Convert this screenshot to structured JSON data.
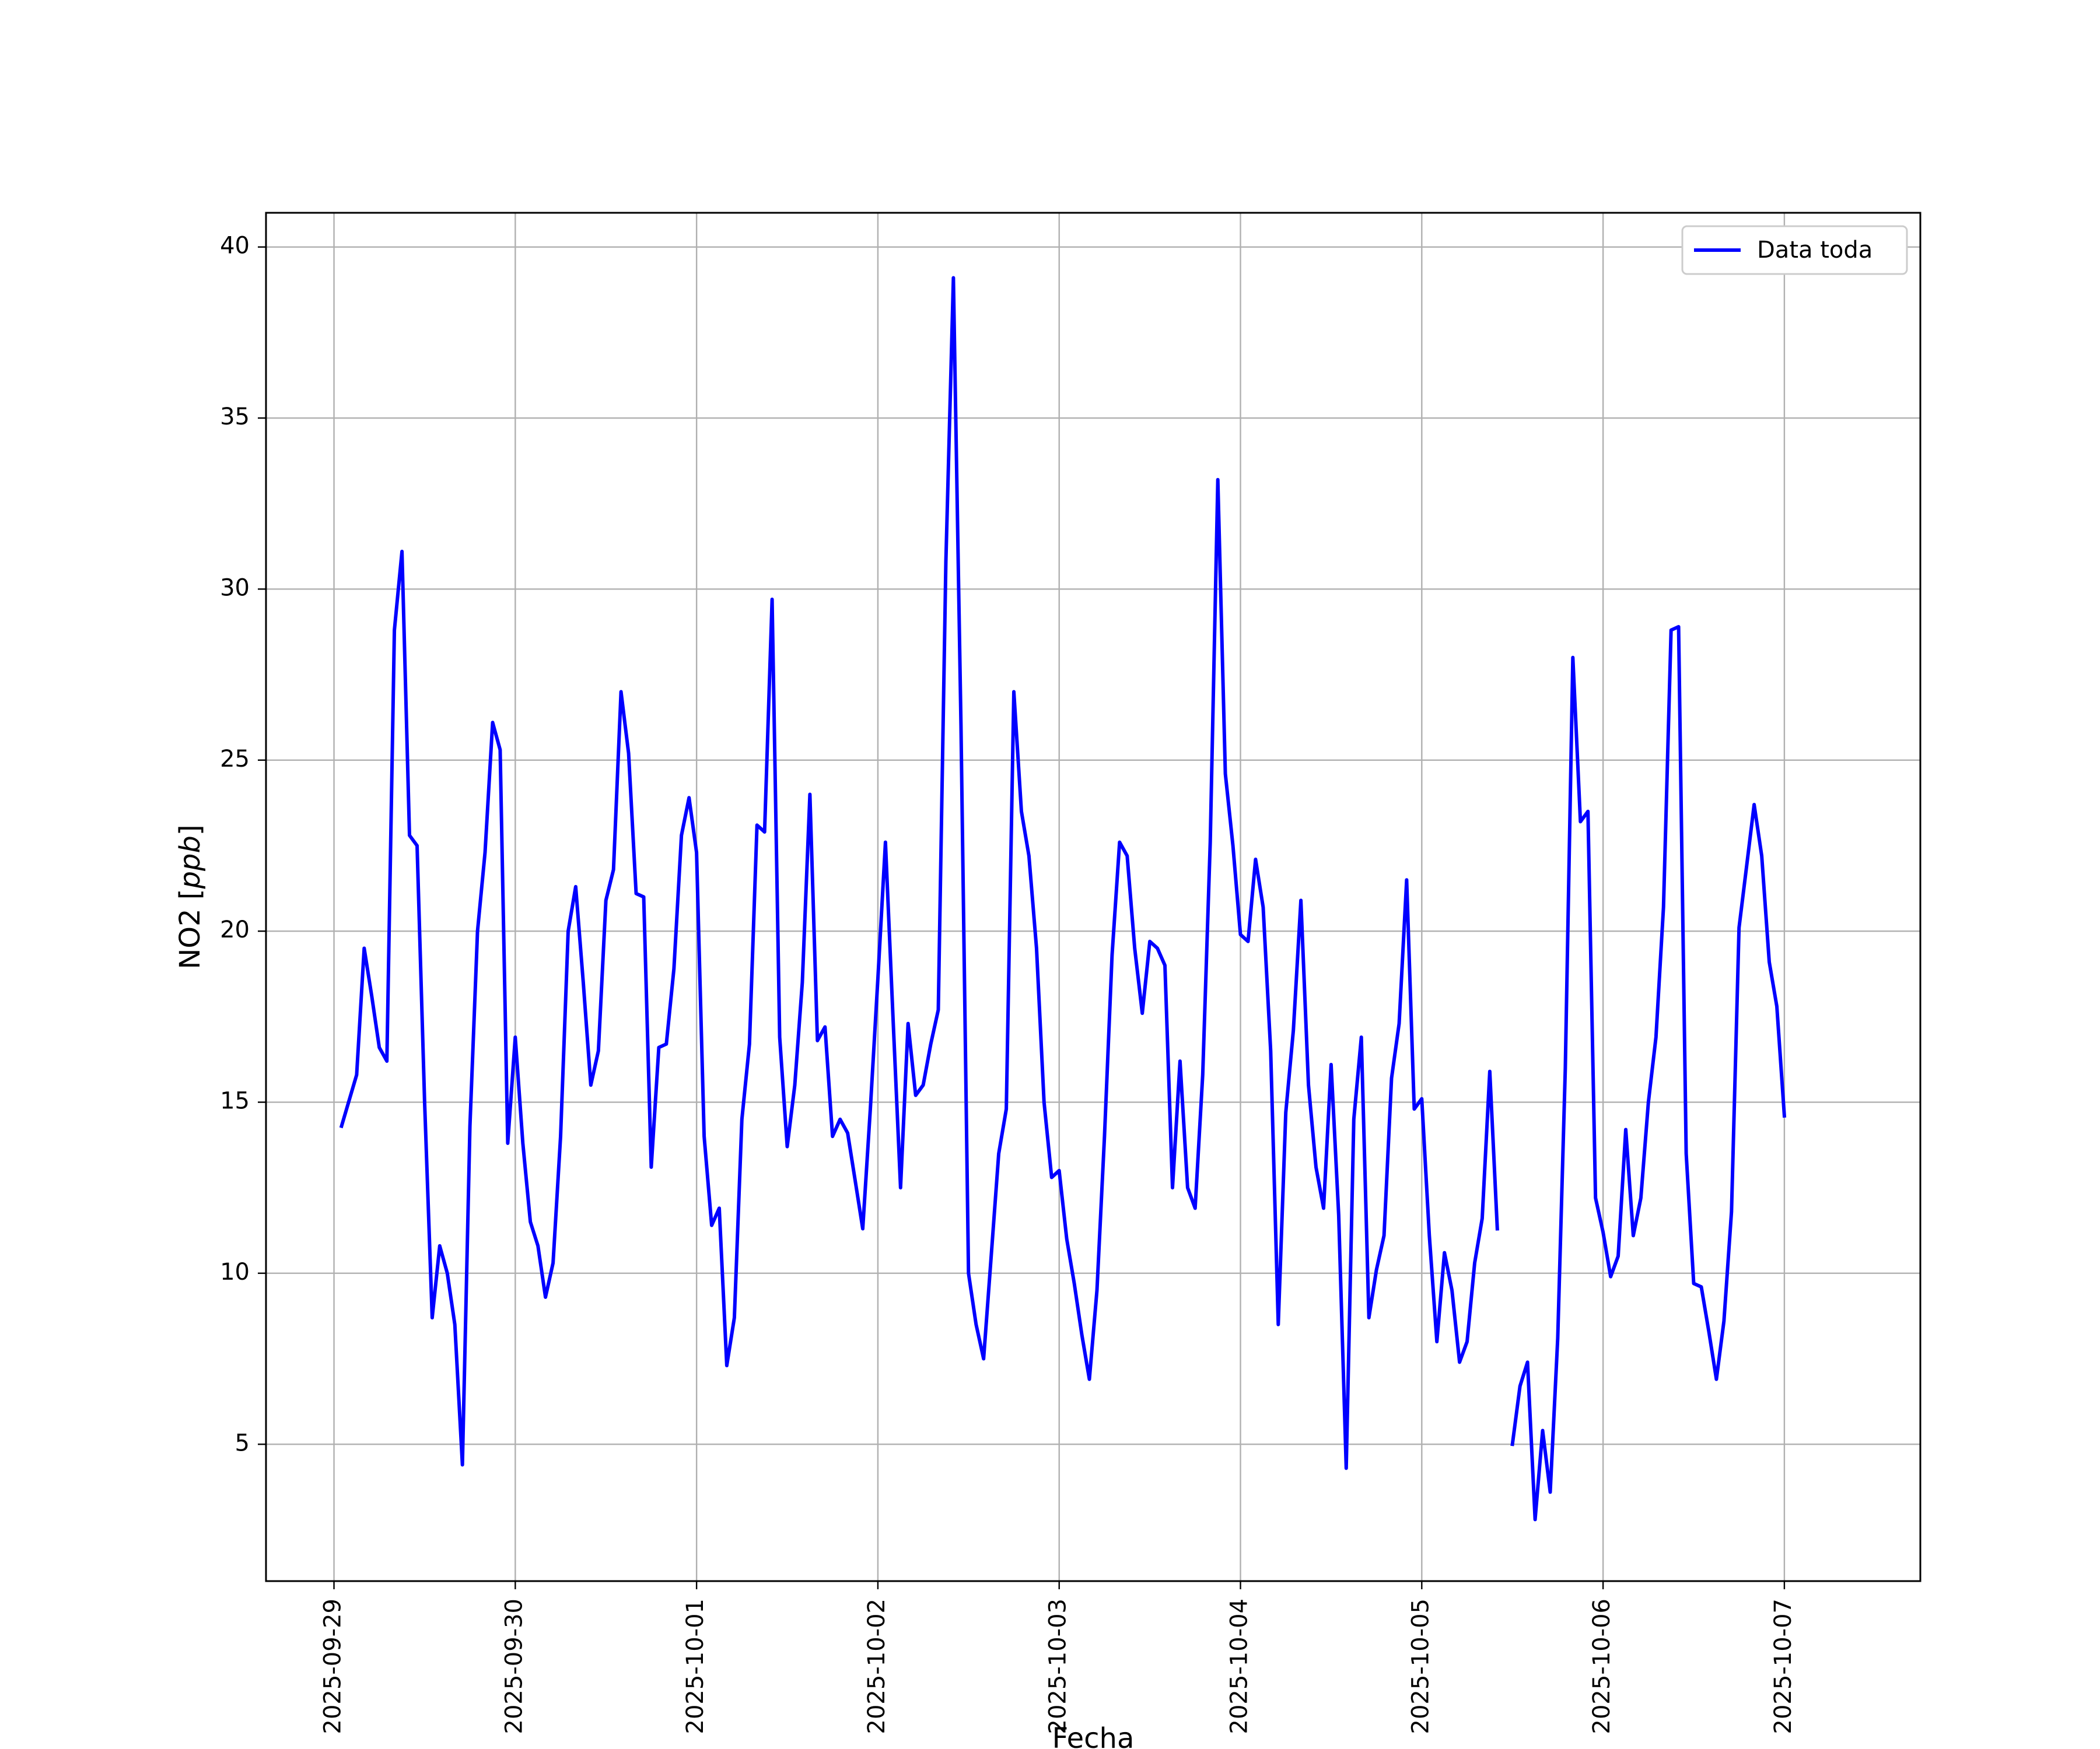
{
  "chart_data": {
    "type": "line",
    "title": "",
    "xlabel": "Fecha",
    "ylabel_main": "NO2 [",
    "ylabel_unit": "ppb",
    "ylabel_close": "]",
    "xlim": [
      "2025-09-28T15:00",
      "2025-10-07T18:00"
    ],
    "ylim": [
      1.0,
      41.0
    ],
    "grid": true,
    "legend": {
      "location": "top-right",
      "entries": [
        "Data toda"
      ]
    },
    "x_ticks": [
      "2025-09-29",
      "2025-09-30",
      "2025-10-01",
      "2025-10-02",
      "2025-10-03",
      "2025-10-04",
      "2025-10-05",
      "2025-10-06",
      "2025-10-07"
    ],
    "y_ticks": [
      5,
      10,
      15,
      20,
      25,
      30,
      35,
      40
    ],
    "series": [
      {
        "name": "Data toda",
        "color": "#0000ff",
        "points": [
          [
            "2025-09-29T01:00",
            14.3
          ],
          [
            "2025-09-29T03:00",
            15.8
          ],
          [
            "2025-09-29T04:00",
            19.5
          ],
          [
            "2025-09-29T05:00",
            18.1
          ],
          [
            "2025-09-29T06:00",
            16.6
          ],
          [
            "2025-09-29T07:00",
            16.2
          ],
          [
            "2025-09-29T08:00",
            28.8
          ],
          [
            "2025-09-29T09:00",
            31.1
          ],
          [
            "2025-09-29T10:00",
            22.8
          ],
          [
            "2025-09-29T11:00",
            22.5
          ],
          [
            "2025-09-29T12:00",
            15.0
          ],
          [
            "2025-09-29T13:00",
            8.7
          ],
          [
            "2025-09-29T14:00",
            10.8
          ],
          [
            "2025-09-29T15:00",
            10.0
          ],
          [
            "2025-09-29T16:00",
            8.5
          ],
          [
            "2025-09-29T17:00",
            4.4
          ],
          [
            "2025-09-29T18:00",
            14.3
          ],
          [
            "2025-09-29T19:00",
            20.0
          ],
          [
            "2025-09-29T20:00",
            22.3
          ],
          [
            "2025-09-29T21:00",
            26.1
          ],
          [
            "2025-09-29T22:00",
            25.3
          ],
          [
            "2025-09-29T23:00",
            13.8
          ],
          [
            "2025-09-30T00:00",
            16.9
          ],
          [
            "2025-09-30T01:00",
            13.8
          ],
          [
            "2025-09-30T02:00",
            11.5
          ],
          [
            "2025-09-30T03:00",
            10.8
          ],
          [
            "2025-09-30T04:00",
            9.3
          ],
          [
            "2025-09-30T05:00",
            10.3
          ],
          [
            "2025-09-30T06:00",
            14.0
          ],
          [
            "2025-09-30T07:00",
            20.0
          ],
          [
            "2025-09-30T08:00",
            21.3
          ],
          [
            "2025-09-30T09:00",
            18.5
          ],
          [
            "2025-09-30T10:00",
            15.5
          ],
          [
            "2025-09-30T11:00",
            16.5
          ],
          [
            "2025-09-30T12:00",
            20.9
          ],
          [
            "2025-09-30T13:00",
            21.8
          ],
          [
            "2025-09-30T14:00",
            27.0
          ],
          [
            "2025-09-30T15:00",
            25.2
          ],
          [
            "2025-09-30T16:00",
            21.1
          ],
          [
            "2025-09-30T17:00",
            21.0
          ],
          [
            "2025-09-30T18:00",
            13.1
          ],
          [
            "2025-09-30T19:00",
            16.6
          ],
          [
            "2025-09-30T20:00",
            16.7
          ],
          [
            "2025-09-30T21:00",
            18.9
          ],
          [
            "2025-09-30T22:00",
            22.8
          ],
          [
            "2025-09-30T23:00",
            23.9
          ],
          [
            "2025-10-01T00:00",
            22.3
          ],
          [
            "2025-10-01T01:00",
            14.0
          ],
          [
            "2025-10-01T02:00",
            11.4
          ],
          [
            "2025-10-01T03:00",
            11.9
          ],
          [
            "2025-10-01T04:00",
            7.3
          ],
          [
            "2025-10-01T05:00",
            8.7
          ],
          [
            "2025-10-01T06:00",
            14.5
          ],
          [
            "2025-10-01T07:00",
            16.7
          ],
          [
            "2025-10-01T08:00",
            23.1
          ],
          [
            "2025-10-01T09:00",
            22.9
          ],
          [
            "2025-10-01T10:00",
            29.7
          ],
          [
            "2025-10-01T11:00",
            16.9
          ],
          [
            "2025-10-01T12:00",
            13.7
          ],
          [
            "2025-10-01T13:00",
            15.5
          ],
          [
            "2025-10-01T14:00",
            18.5
          ],
          [
            "2025-10-01T15:00",
            24.0
          ],
          [
            "2025-10-01T16:00",
            16.8
          ],
          [
            "2025-10-01T17:00",
            17.2
          ],
          [
            "2025-10-01T18:00",
            14.0
          ],
          [
            "2025-10-01T19:00",
            14.5
          ],
          [
            "2025-10-01T20:00",
            14.1
          ],
          [
            "2025-10-01T21:00",
            12.7
          ],
          [
            "2025-10-01T22:00",
            11.3
          ],
          [
            "2025-10-01T23:00",
            14.8
          ],
          [
            "2025-10-02T00:00",
            18.6
          ],
          [
            "2025-10-02T01:00",
            22.6
          ],
          [
            "2025-10-02T02:00",
            17.5
          ],
          [
            "2025-10-02T03:00",
            12.5
          ],
          [
            "2025-10-02T04:00",
            17.3
          ],
          [
            "2025-10-02T05:00",
            15.2
          ],
          [
            "2025-10-02T06:00",
            15.5
          ],
          [
            "2025-10-02T07:00",
            16.7
          ],
          [
            "2025-10-02T08:00",
            17.7
          ],
          [
            "2025-10-02T09:00",
            30.8
          ],
          [
            "2025-10-02T10:00",
            39.1
          ],
          [
            "2025-10-02T11:00",
            26.0
          ],
          [
            "2025-10-02T12:00",
            10.0
          ],
          [
            "2025-10-02T13:00",
            8.5
          ],
          [
            "2025-10-02T14:00",
            7.5
          ],
          [
            "2025-10-02T15:00",
            10.5
          ],
          [
            "2025-10-02T16:00",
            13.5
          ],
          [
            "2025-10-02T17:00",
            14.8
          ],
          [
            "2025-10-02T18:00",
            27.0
          ],
          [
            "2025-10-02T19:00",
            23.5
          ],
          [
            "2025-10-02T20:00",
            22.2
          ],
          [
            "2025-10-02T21:00",
            19.5
          ],
          [
            "2025-10-02T22:00",
            15.0
          ],
          [
            "2025-10-02T23:00",
            12.8
          ],
          [
            "2025-10-03T00:00",
            13.0
          ],
          [
            "2025-10-03T01:00",
            11.0
          ],
          [
            "2025-10-03T02:00",
            9.7
          ],
          [
            "2025-10-03T03:00",
            8.2
          ],
          [
            "2025-10-03T04:00",
            6.9
          ],
          [
            "2025-10-03T05:00",
            9.5
          ],
          [
            "2025-10-03T06:00",
            14.0
          ],
          [
            "2025-10-03T07:00",
            19.3
          ],
          [
            "2025-10-03T08:00",
            22.6
          ],
          [
            "2025-10-03T09:00",
            22.2
          ],
          [
            "2025-10-03T10:00",
            19.5
          ],
          [
            "2025-10-03T11:00",
            17.6
          ],
          [
            "2025-10-03T12:00",
            19.7
          ],
          [
            "2025-10-03T13:00",
            19.5
          ],
          [
            "2025-10-03T14:00",
            19.0
          ],
          [
            "2025-10-03T15:00",
            12.5
          ],
          [
            "2025-10-03T16:00",
            16.2
          ],
          [
            "2025-10-03T17:00",
            12.5
          ],
          [
            "2025-10-03T18:00",
            11.9
          ],
          [
            "2025-10-03T19:00",
            15.8
          ],
          [
            "2025-10-03T20:00",
            22.6
          ],
          [
            "2025-10-03T21:00",
            33.2
          ],
          [
            "2025-10-03T22:00",
            24.6
          ],
          [
            "2025-10-03T23:00",
            22.5
          ],
          [
            "2025-10-04T00:00",
            19.9
          ],
          [
            "2025-10-04T01:00",
            19.7
          ],
          [
            "2025-10-04T02:00",
            22.1
          ],
          [
            "2025-10-04T03:00",
            20.7
          ],
          [
            "2025-10-04T04:00",
            16.5
          ],
          [
            "2025-10-04T05:00",
            8.5
          ],
          [
            "2025-10-04T06:00",
            14.7
          ],
          [
            "2025-10-04T07:00",
            17.1
          ],
          [
            "2025-10-04T08:00",
            20.9
          ],
          [
            "2025-10-04T09:00",
            15.5
          ],
          [
            "2025-10-04T10:00",
            13.1
          ],
          [
            "2025-10-04T11:00",
            11.9
          ],
          [
            "2025-10-04T12:00",
            16.1
          ],
          [
            "2025-10-04T13:00",
            11.7
          ],
          [
            "2025-10-04T14:00",
            4.3
          ],
          [
            "2025-10-04T15:00",
            14.5
          ],
          [
            "2025-10-04T16:00",
            16.9
          ],
          [
            "2025-10-04T17:00",
            8.7
          ],
          [
            "2025-10-04T18:00",
            10.1
          ],
          [
            "2025-10-04T19:00",
            11.1
          ],
          [
            "2025-10-04T20:00",
            15.7
          ],
          [
            "2025-10-04T21:00",
            17.3
          ],
          [
            "2025-10-04T22:00",
            21.5
          ],
          [
            "2025-10-04T23:00",
            14.8
          ],
          [
            "2025-10-05T00:00",
            15.1
          ],
          [
            "2025-10-05T01:00",
            11.1
          ],
          [
            "2025-10-05T02:00",
            8.0
          ],
          [
            "2025-10-05T03:00",
            10.6
          ],
          [
            "2025-10-05T04:00",
            9.5
          ],
          [
            "2025-10-05T05:00",
            7.4
          ],
          [
            "2025-10-05T06:00",
            8.0
          ],
          [
            "2025-10-05T07:00",
            10.3
          ],
          [
            "2025-10-05T08:00",
            11.6
          ],
          [
            "2025-10-05T09:00",
            15.9
          ],
          [
            "2025-10-05T10:00",
            11.3
          ],
          null,
          [
            "2025-10-05T12:00",
            5.0
          ],
          [
            "2025-10-05T13:00",
            6.7
          ],
          [
            "2025-10-05T14:00",
            7.4
          ],
          [
            "2025-10-05T15:00",
            2.8
          ],
          [
            "2025-10-05T16:00",
            5.4
          ],
          [
            "2025-10-05T17:00",
            3.6
          ],
          [
            "2025-10-05T18:00",
            8.1
          ],
          [
            "2025-10-05T19:00",
            16.0
          ],
          [
            "2025-10-05T20:00",
            28.0
          ],
          [
            "2025-10-05T21:00",
            23.2
          ],
          [
            "2025-10-05T22:00",
            23.5
          ],
          [
            "2025-10-05T23:00",
            12.2
          ],
          [
            "2025-10-06T00:00",
            11.2
          ],
          [
            "2025-10-06T01:00",
            9.9
          ],
          [
            "2025-10-06T02:00",
            10.5
          ],
          [
            "2025-10-06T03:00",
            14.2
          ],
          [
            "2025-10-06T04:00",
            11.1
          ],
          [
            "2025-10-06T05:00",
            12.2
          ],
          [
            "2025-10-06T06:00",
            15.0
          ],
          [
            "2025-10-06T07:00",
            16.9
          ],
          [
            "2025-10-06T08:00",
            20.7
          ],
          [
            "2025-10-06T09:00",
            28.8
          ],
          [
            "2025-10-06T10:00",
            28.9
          ],
          [
            "2025-10-06T11:00",
            13.5
          ],
          [
            "2025-10-06T12:00",
            9.7
          ],
          [
            "2025-10-06T13:00",
            9.6
          ],
          [
            "2025-10-06T14:00",
            8.3
          ],
          [
            "2025-10-06T15:00",
            6.9
          ],
          [
            "2025-10-06T16:00",
            8.6
          ],
          [
            "2025-10-06T17:00",
            11.8
          ],
          [
            "2025-10-06T18:00",
            20.1
          ],
          [
            "2025-10-06T19:00",
            21.9
          ],
          [
            "2025-10-06T20:00",
            23.7
          ],
          [
            "2025-10-06T21:00",
            22.2
          ],
          [
            "2025-10-06T22:00",
            19.1
          ],
          [
            "2025-10-06T23:00",
            17.8
          ],
          [
            "2025-10-07T00:00",
            14.6
          ]
        ]
      }
    ]
  }
}
